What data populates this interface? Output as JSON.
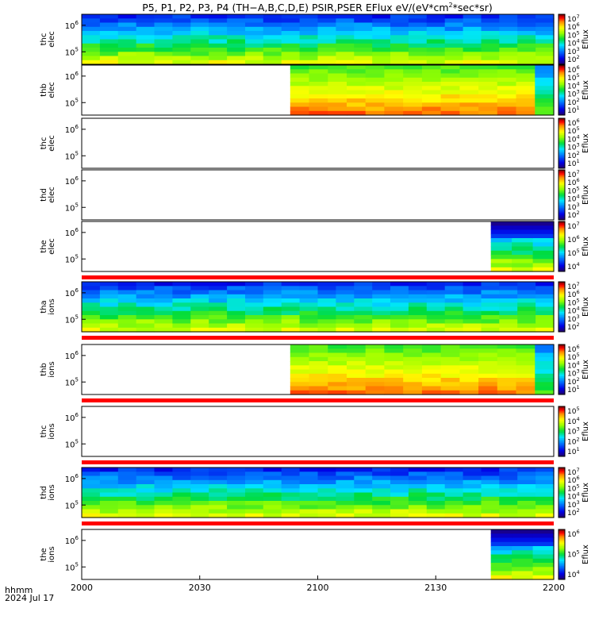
{
  "title": "P5, P1, P2, P3, P4 (TH−A,B,C,D,E) PSIR,PSER EFlux eV/(eV*cm",
  "title_sup": "2",
  "title_tail": "*sec*sr)",
  "xaxis": {
    "label1": "hhmm",
    "label2": "2024 Jul 17",
    "ticks": [
      "2000",
      "2030",
      "2100",
      "2130",
      "2200"
    ],
    "range_minutes": [
      0,
      120
    ]
  },
  "colorbar_label": "Eflux",
  "chart_data": [
    {
      "type": "heatmap",
      "ylabel": [
        "thc",
        "elec"
      ],
      "yticks": [
        {
          "label": "10",
          "exp": "5"
        },
        {
          "label": "10",
          "exp": "6"
        }
      ],
      "cbar": [
        {
          "label": "10",
          "exp": "7"
        },
        {
          "label": "10",
          "exp": "6"
        },
        {
          "label": "10",
          "exp": "5"
        },
        {
          "label": "10",
          "exp": "4"
        },
        {
          "label": "10",
          "exp": "3"
        },
        {
          "label": "10",
          "exp": "2"
        }
      ],
      "data_start_min": 0,
      "data_end_min": 120,
      "data_start_frac": 0.0,
      "dark_top": false,
      "red_lines": []
    },
    {
      "type": "heatmap",
      "ylabel": [
        "thb",
        "elec"
      ],
      "yticks": [
        {
          "label": "10",
          "exp": "5"
        },
        {
          "label": "10",
          "exp": "6"
        }
      ],
      "cbar": [
        {
          "label": "10",
          "exp": "6"
        },
        {
          "label": "10",
          "exp": "5"
        },
        {
          "label": "10",
          "exp": "4"
        },
        {
          "label": "10",
          "exp": "3"
        },
        {
          "label": "10",
          "exp": "2"
        },
        {
          "label": "10",
          "exp": "1"
        }
      ],
      "data_start_min": 53,
      "data_end_min": 120,
      "data_start_frac": 0.442,
      "dark_top": false,
      "red_lines": []
    },
    {
      "type": "heatmap",
      "ylabel": [
        "thc",
        "elec"
      ],
      "yticks": [
        {
          "label": "10",
          "exp": "5"
        },
        {
          "label": "10",
          "exp": "6"
        }
      ],
      "cbar": [
        {
          "label": "10",
          "exp": "6"
        },
        {
          "label": "10",
          "exp": "5"
        },
        {
          "label": "10",
          "exp": "4"
        },
        {
          "label": "10",
          "exp": "3"
        },
        {
          "label": "10",
          "exp": "2"
        },
        {
          "label": "10",
          "exp": "1"
        }
      ],
      "data_start_min": null,
      "data_end_min": null,
      "data_start_frac": null,
      "dark_top": false,
      "red_lines": []
    },
    {
      "type": "heatmap",
      "ylabel": [
        "thd",
        "elec"
      ],
      "yticks": [
        {
          "label": "10",
          "exp": "5"
        },
        {
          "label": "10",
          "exp": "6"
        }
      ],
      "cbar": [
        {
          "label": "10",
          "exp": "7"
        },
        {
          "label": "10",
          "exp": "6"
        },
        {
          "label": "10",
          "exp": "5"
        },
        {
          "label": "10",
          "exp": "4"
        },
        {
          "label": "10",
          "exp": "3"
        },
        {
          "label": "10",
          "exp": "2"
        }
      ],
      "data_start_min": null,
      "data_end_min": null,
      "data_start_frac": null,
      "dark_top": false,
      "red_lines": []
    },
    {
      "type": "heatmap",
      "ylabel": [
        "the",
        "elec"
      ],
      "yticks": [
        {
          "label": "10",
          "exp": "5"
        },
        {
          "label": "10",
          "exp": "6"
        }
      ],
      "cbar": [
        {
          "label": "10",
          "exp": "7"
        },
        {
          "label": "10",
          "exp": "6"
        },
        {
          "label": "10",
          "exp": "5"
        },
        {
          "label": "10",
          "exp": "4"
        }
      ],
      "data_start_min": 104,
      "data_end_min": 120,
      "data_start_frac": 0.86,
      "dark_top": true,
      "red_lines": [
        "bottom"
      ]
    },
    {
      "type": "heatmap",
      "ylabel": [
        "tha",
        "ions"
      ],
      "yticks": [
        {
          "label": "10",
          "exp": "5"
        },
        {
          "label": "10",
          "exp": "6"
        }
      ],
      "cbar": [
        {
          "label": "10",
          "exp": "7"
        },
        {
          "label": "10",
          "exp": "6"
        },
        {
          "label": "10",
          "exp": "5"
        },
        {
          "label": "10",
          "exp": "4"
        },
        {
          "label": "10",
          "exp": "3"
        },
        {
          "label": "10",
          "exp": "2"
        }
      ],
      "data_start_min": 0,
      "data_end_min": 120,
      "data_start_frac": 0.0,
      "dark_top": false,
      "red_lines": [
        "bottom"
      ]
    },
    {
      "type": "heatmap",
      "ylabel": [
        "thb",
        "ions"
      ],
      "yticks": [
        {
          "label": "10",
          "exp": "5"
        },
        {
          "label": "10",
          "exp": "6"
        }
      ],
      "cbar": [
        {
          "label": "10",
          "exp": "6"
        },
        {
          "label": "10",
          "exp": "5"
        },
        {
          "label": "10",
          "exp": "4"
        },
        {
          "label": "10",
          "exp": "3"
        },
        {
          "label": "10",
          "exp": "2"
        },
        {
          "label": "10",
          "exp": "1"
        }
      ],
      "data_start_min": 53,
      "data_end_min": 120,
      "data_start_frac": 0.442,
      "dark_top": false,
      "red_lines": [
        "bottom"
      ]
    },
    {
      "type": "heatmap",
      "ylabel": [
        "thc",
        "ions"
      ],
      "yticks": [
        {
          "label": "10",
          "exp": "5"
        },
        {
          "label": "10",
          "exp": "6"
        }
      ],
      "cbar": [
        {
          "label": "10",
          "exp": "5"
        },
        {
          "label": "10",
          "exp": "4"
        },
        {
          "label": "10",
          "exp": "3"
        },
        {
          "label": "10",
          "exp": "2"
        },
        {
          "label": "10",
          "exp": "1"
        }
      ],
      "data_start_min": null,
      "data_end_min": null,
      "data_start_frac": null,
      "dark_top": false,
      "red_lines": [
        "bottom"
      ]
    },
    {
      "type": "heatmap",
      "ylabel": [
        "thd",
        "ions"
      ],
      "yticks": [
        {
          "label": "10",
          "exp": "5"
        },
        {
          "label": "10",
          "exp": "6"
        }
      ],
      "cbar": [
        {
          "label": "10",
          "exp": "7"
        },
        {
          "label": "10",
          "exp": "6"
        },
        {
          "label": "10",
          "exp": "5"
        },
        {
          "label": "10",
          "exp": "4"
        },
        {
          "label": "10",
          "exp": "3"
        },
        {
          "label": "10",
          "exp": "2"
        }
      ],
      "data_start_min": 0,
      "data_end_min": 120,
      "data_start_frac": 0.0,
      "dark_top": false,
      "red_lines": [
        "bottom"
      ]
    },
    {
      "type": "heatmap",
      "ylabel": [
        "the",
        "ions"
      ],
      "yticks": [
        {
          "label": "10",
          "exp": "5"
        },
        {
          "label": "10",
          "exp": "6"
        }
      ],
      "cbar": [
        {
          "label": "10",
          "exp": "6"
        },
        {
          "label": "10",
          "exp": "5"
        },
        {
          "label": "10",
          "exp": "4"
        }
      ],
      "data_start_min": 104,
      "data_end_min": 120,
      "data_start_frac": 0.86,
      "dark_top": true,
      "red_lines": []
    }
  ]
}
